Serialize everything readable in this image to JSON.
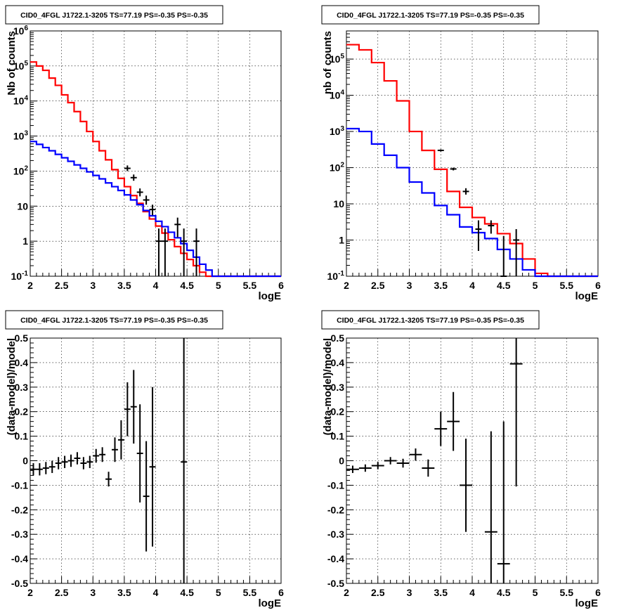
{
  "chart_data": [
    {
      "type": "line",
      "title": "CID0_4FGL J1722.1-3205 TS=77.19 PS=-0.35 PS=-0.35",
      "xlabel": "logE",
      "ylabel": "Nb of counts",
      "xlim": [
        2,
        6
      ],
      "ylim": [
        0.1,
        1000000
      ],
      "yscale": "log",
      "grid": true,
      "x_ticks": [
        "2",
        "2.5",
        "3",
        "3.5",
        "4",
        "4.5",
        "5",
        "5.5",
        "6"
      ],
      "y_ticks": [
        "10^-1",
        "1",
        "10",
        "10^2",
        "10^3",
        "10^4",
        "10^5",
        "10^6"
      ],
      "bin_edges": [
        2.0,
        2.1,
        2.2,
        2.3,
        2.4,
        2.5,
        2.6,
        2.7,
        2.8,
        2.9,
        3.0,
        3.1,
        3.2,
        3.3,
        3.4,
        3.5,
        3.6,
        3.7,
        3.8,
        3.9,
        4.0,
        4.1,
        4.2,
        4.3,
        4.4,
        4.5,
        4.6,
        4.7,
        4.8,
        4.9,
        5.0,
        5.1,
        5.2,
        5.3,
        5.4,
        5.5,
        5.6,
        5.7,
        5.8,
        5.9,
        6.0
      ],
      "series": [
        {
          "color": "#ff0000",
          "values": [
            130000,
            100000,
            75000,
            45000,
            28000,
            15000,
            9000,
            5000,
            2600,
            1350,
            700,
            380,
            210,
            110,
            62,
            36,
            20,
            12,
            7,
            4.3,
            2.7,
            1.7,
            1.1,
            0.7,
            0.45,
            0.3,
            0.2,
            0.13,
            0.1,
            0.1,
            0.1,
            0.1,
            0.1,
            0.1,
            0.1,
            0.1,
            0.1,
            0.1,
            0.1,
            0.1
          ]
        },
        {
          "color": "#0000ff",
          "values": [
            700,
            580,
            470,
            380,
            300,
            240,
            190,
            150,
            120,
            95,
            75,
            60,
            46,
            36,
            28,
            21,
            15,
            11,
            7.5,
            5.3,
            3.7,
            2.6,
            1.8,
            1.25,
            0.85,
            0.55,
            0.35,
            0.22,
            0.15,
            0.1,
            0.1,
            0.1,
            0.1,
            0.1,
            0.1,
            0.1,
            0.1,
            0.1,
            0.1,
            0.1
          ]
        }
      ],
      "points": [
        {
          "x": 3.55,
          "y": 120,
          "lo": 100,
          "hi": 145
        },
        {
          "x": 3.65,
          "y": 65,
          "lo": 53,
          "hi": 80
        },
        {
          "x": 3.75,
          "y": 25,
          "lo": 19,
          "hi": 32
        },
        {
          "x": 3.85,
          "y": 15,
          "lo": 11,
          "hi": 20
        },
        {
          "x": 3.95,
          "y": 8,
          "lo": 5.5,
          "hi": 11
        },
        {
          "x": 4.05,
          "y": 1,
          "lo": 0.1,
          "hi": 2.3
        },
        {
          "x": 4.15,
          "y": 1,
          "lo": 0.1,
          "hi": 2.3
        },
        {
          "x": 4.35,
          "y": 3,
          "lo": 1.3,
          "hi": 4.7
        },
        {
          "x": 4.45,
          "y": 1,
          "lo": 0.1,
          "hi": 2.3
        },
        {
          "x": 4.65,
          "y": 1,
          "lo": 0.1,
          "hi": 2.3
        }
      ]
    },
    {
      "type": "line",
      "title": "CID0_4FGL J1722.1-3205 TS=77.19 PS=-0.35 PS=-0.35",
      "xlabel": "logE",
      "ylabel": "nb of counts",
      "xlim": [
        2,
        6
      ],
      "ylim": [
        0.1,
        600000
      ],
      "yscale": "log",
      "grid": true,
      "x_ticks": [
        "2",
        "2.5",
        "3",
        "3.5",
        "4",
        "4.5",
        "5",
        "5.5",
        "6"
      ],
      "y_ticks": [
        "10^-1",
        "1",
        "10",
        "10^2",
        "10^3",
        "10^4",
        "10^5"
      ],
      "bin_edges": [
        2.0,
        2.2,
        2.4,
        2.6,
        2.8,
        3.0,
        3.2,
        3.4,
        3.6,
        3.8,
        4.0,
        4.2,
        4.4,
        4.6,
        4.8,
        5.0,
        5.2,
        5.4,
        5.6,
        5.8,
        6.0
      ],
      "series": [
        {
          "color": "#ff0000",
          "values": [
            250000,
            180000,
            80000,
            25000,
            7000,
            1000,
            300,
            90,
            22,
            8,
            4.2,
            2.8,
            1.5,
            0.8,
            0.3,
            0.12,
            0.1,
            0.1,
            0.1,
            0.1
          ]
        },
        {
          "color": "#0000ff",
          "values": [
            1200,
            1000,
            450,
            220,
            100,
            40,
            20,
            9,
            5,
            2.3,
            1.6,
            1.1,
            0.55,
            0.3,
            0.15,
            0.1,
            0.1,
            0.1,
            0.1,
            0.1
          ]
        }
      ],
      "points": [
        {
          "x": 3.5,
          "y": 300,
          "lo": 280,
          "hi": 320
        },
        {
          "x": 3.7,
          "y": 92,
          "lo": 84,
          "hi": 100
        },
        {
          "x": 3.9,
          "y": 22,
          "lo": 18,
          "hi": 27
        },
        {
          "x": 4.1,
          "y": 2,
          "lo": 0.5,
          "hi": 3.5
        },
        {
          "x": 4.3,
          "y": 2.5,
          "lo": 1.5,
          "hi": 3.5
        },
        {
          "x": 4.5,
          "y": 0.1,
          "lo": 0.1,
          "hi": 1.3
        },
        {
          "x": 4.7,
          "y": 1,
          "lo": 0.1,
          "hi": 2.0
        }
      ]
    },
    {
      "type": "scatter",
      "title": "CID0_4FGL J1722.1-3205 TS=77.19 PS=-0.35 PS=-0.35",
      "xlabel": "logE",
      "ylabel": "(data-model)/model",
      "xlim": [
        2,
        6
      ],
      "ylim": [
        -0.5,
        0.5
      ],
      "grid": true,
      "x_ticks": [
        "2",
        "2.5",
        "3",
        "3.5",
        "4",
        "4.5",
        "5",
        "5.5",
        "6"
      ],
      "y_ticks": [
        "-0.5",
        "-0.4",
        "-0.3",
        "-0.2",
        "-0.1",
        "0",
        "0.1",
        "0.2",
        "0.3",
        "0.4",
        "0.5"
      ],
      "points": [
        {
          "x": 2.05,
          "y": -0.035,
          "dx": 0.05,
          "dy": 0.025
        },
        {
          "x": 2.15,
          "y": -0.035,
          "dx": 0.05,
          "dy": 0.025
        },
        {
          "x": 2.25,
          "y": -0.03,
          "dx": 0.05,
          "dy": 0.025
        },
        {
          "x": 2.35,
          "y": -0.025,
          "dx": 0.05,
          "dy": 0.025
        },
        {
          "x": 2.45,
          "y": -0.01,
          "dx": 0.05,
          "dy": 0.025
        },
        {
          "x": 2.55,
          "y": -0.005,
          "dx": 0.05,
          "dy": 0.025
        },
        {
          "x": 2.65,
          "y": 0.0,
          "dx": 0.05,
          "dy": 0.025
        },
        {
          "x": 2.75,
          "y": 0.01,
          "dx": 0.05,
          "dy": 0.025
        },
        {
          "x": 2.85,
          "y": -0.01,
          "dx": 0.05,
          "dy": 0.025
        },
        {
          "x": 2.95,
          "y": -0.005,
          "dx": 0.05,
          "dy": 0.025
        },
        {
          "x": 3.05,
          "y": 0.02,
          "dx": 0.05,
          "dy": 0.028
        },
        {
          "x": 3.15,
          "y": 0.025,
          "dx": 0.05,
          "dy": 0.03
        },
        {
          "x": 3.25,
          "y": -0.075,
          "dx": 0.05,
          "dy": 0.03
        },
        {
          "x": 3.35,
          "y": 0.045,
          "dx": 0.05,
          "dy": 0.05
        },
        {
          "x": 3.45,
          "y": 0.085,
          "dx": 0.05,
          "dy": 0.08
        },
        {
          "x": 3.55,
          "y": 0.21,
          "dx": 0.05,
          "dy": 0.11
        },
        {
          "x": 3.65,
          "y": 0.22,
          "dx": 0.05,
          "dy": 0.15
        },
        {
          "x": 3.75,
          "y": 0.03,
          "dx": 0.05,
          "dy": 0.2
        },
        {
          "x": 3.85,
          "y": -0.145,
          "dx": 0.05,
          "dy": 0.225
        },
        {
          "x": 3.95,
          "y": -0.025,
          "dx": 0.05,
          "dy": 0.325
        },
        {
          "x": 4.45,
          "y": -0.005,
          "dx": 0.05,
          "dy": 0.6
        }
      ]
    },
    {
      "type": "scatter",
      "title": "CID0_4FGL J1722.1-3205 TS=77.19 PS=-0.35 PS=-0.35",
      "xlabel": "logE",
      "ylabel": "(data-model)/model",
      "xlim": [
        2,
        6
      ],
      "ylim": [
        -0.5,
        0.5
      ],
      "grid": true,
      "x_ticks": [
        "2",
        "2.5",
        "3",
        "3.5",
        "4",
        "4.5",
        "5",
        "5.5",
        "6"
      ],
      "y_ticks": [
        "-0.5",
        "-0.4",
        "-0.3",
        "-0.2",
        "-0.1",
        "0",
        "0.1",
        "0.2",
        "0.3",
        "0.4",
        "0.5"
      ],
      "points": [
        {
          "x": 2.1,
          "y": -0.035,
          "dx": 0.1,
          "dy": 0.015
        },
        {
          "x": 2.3,
          "y": -0.03,
          "dx": 0.1,
          "dy": 0.015
        },
        {
          "x": 2.5,
          "y": -0.02,
          "dx": 0.1,
          "dy": 0.015
        },
        {
          "x": 2.7,
          "y": 0.0,
          "dx": 0.1,
          "dy": 0.015
        },
        {
          "x": 2.9,
          "y": -0.01,
          "dx": 0.1,
          "dy": 0.018
        },
        {
          "x": 3.1,
          "y": 0.025,
          "dx": 0.1,
          "dy": 0.025
        },
        {
          "x": 3.3,
          "y": -0.03,
          "dx": 0.1,
          "dy": 0.035
        },
        {
          "x": 3.5,
          "y": 0.13,
          "dx": 0.1,
          "dy": 0.07
        },
        {
          "x": 3.7,
          "y": 0.16,
          "dx": 0.1,
          "dy": 0.12
        },
        {
          "x": 3.9,
          "y": -0.1,
          "dx": 0.1,
          "dy": 0.19
        },
        {
          "x": 4.3,
          "y": -0.29,
          "dx": 0.1,
          "dy": 0.41
        },
        {
          "x": 4.5,
          "y": -0.42,
          "dx": 0.1,
          "dy": 0.58
        },
        {
          "x": 4.7,
          "y": 0.395,
          "dx": 0.1,
          "dy": 0.5
        }
      ]
    }
  ]
}
